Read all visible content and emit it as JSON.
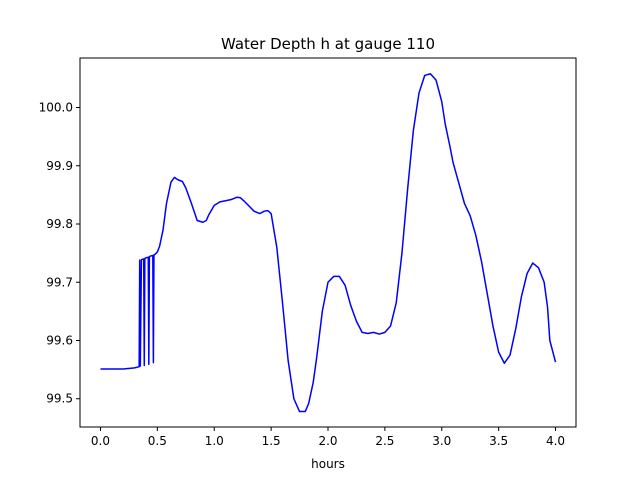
{
  "chart_data": {
    "type": "line",
    "title": "Water Depth h at gauge 110",
    "xlabel": "hours",
    "ylabel": "",
    "xlim": [
      -0.18,
      4.18
    ],
    "ylim": [
      99.4515,
      100.085
    ],
    "x_ticks": [
      0.0,
      0.5,
      1.0,
      1.5,
      2.0,
      2.5,
      3.0,
      3.5,
      4.0
    ],
    "x_tick_labels": [
      "0.0",
      "0.5",
      "1.0",
      "1.5",
      "2.0",
      "2.5",
      "3.0",
      "3.5",
      "4.0"
    ],
    "y_ticks": [
      99.5,
      99.6,
      99.7,
      99.8,
      99.9,
      100.0
    ],
    "y_tick_labels": [
      "99.5",
      "99.6",
      "99.7",
      "99.8",
      "99.9",
      "100.0"
    ],
    "grid": false,
    "legend": false,
    "color": "#0000ff",
    "series": [
      {
        "x": [
          0.0,
          0.1,
          0.2,
          0.3,
          0.34,
          0.345,
          0.35,
          0.36,
          0.38,
          0.385,
          0.39,
          0.4,
          0.42,
          0.425,
          0.43,
          0.44,
          0.46,
          0.465,
          0.47,
          0.48,
          0.5,
          0.52,
          0.55,
          0.58,
          0.62,
          0.65,
          0.68,
          0.72,
          0.75,
          0.8,
          0.85,
          0.9,
          0.93,
          0.95,
          1.0,
          1.05,
          1.1,
          1.15,
          1.2,
          1.23,
          1.27,
          1.3,
          1.35,
          1.4,
          1.44,
          1.47,
          1.5,
          1.55,
          1.6,
          1.65,
          1.7,
          1.75,
          1.8,
          1.83,
          1.87,
          1.9,
          1.95,
          2.0,
          2.05,
          2.1,
          2.15,
          2.2,
          2.25,
          2.3,
          2.35,
          2.4,
          2.45,
          2.5,
          2.55,
          2.6,
          2.65,
          2.7,
          2.75,
          2.8,
          2.85,
          2.9,
          2.95,
          3.0,
          3.03,
          3.07,
          3.1,
          3.15,
          3.2,
          3.25,
          3.3,
          3.35,
          3.4,
          3.45,
          3.5,
          3.55,
          3.6,
          3.65,
          3.7,
          3.75,
          3.8,
          3.85,
          3.9,
          3.93,
          3.95,
          4.0
        ],
        "y": [
          99.551,
          99.551,
          99.551,
          99.553,
          99.555,
          99.738,
          99.556,
          99.739,
          99.74,
          99.557,
          99.741,
          99.742,
          99.743,
          99.559,
          99.744,
          99.745,
          99.746,
          99.562,
          99.747,
          99.748,
          99.752,
          99.762,
          99.79,
          99.835,
          99.872,
          99.88,
          99.876,
          99.873,
          99.862,
          99.835,
          99.806,
          99.803,
          99.806,
          99.815,
          99.832,
          99.838,
          99.84,
          99.842,
          99.846,
          99.845,
          99.838,
          99.832,
          99.822,
          99.818,
          99.822,
          99.823,
          99.818,
          99.76,
          99.665,
          99.565,
          99.5,
          99.478,
          99.478,
          99.492,
          99.528,
          99.57,
          99.65,
          99.7,
          99.71,
          99.71,
          99.695,
          99.66,
          99.633,
          99.614,
          99.612,
          99.614,
          99.611,
          99.614,
          99.625,
          99.665,
          99.75,
          99.86,
          99.96,
          100.025,
          100.055,
          100.058,
          100.047,
          100.01,
          99.972,
          99.935,
          99.905,
          99.87,
          99.835,
          99.814,
          99.78,
          99.735,
          99.68,
          99.625,
          99.58,
          99.561,
          99.575,
          99.62,
          99.675,
          99.715,
          99.733,
          99.725,
          99.7,
          99.657,
          99.6,
          99.563
        ]
      }
    ]
  }
}
